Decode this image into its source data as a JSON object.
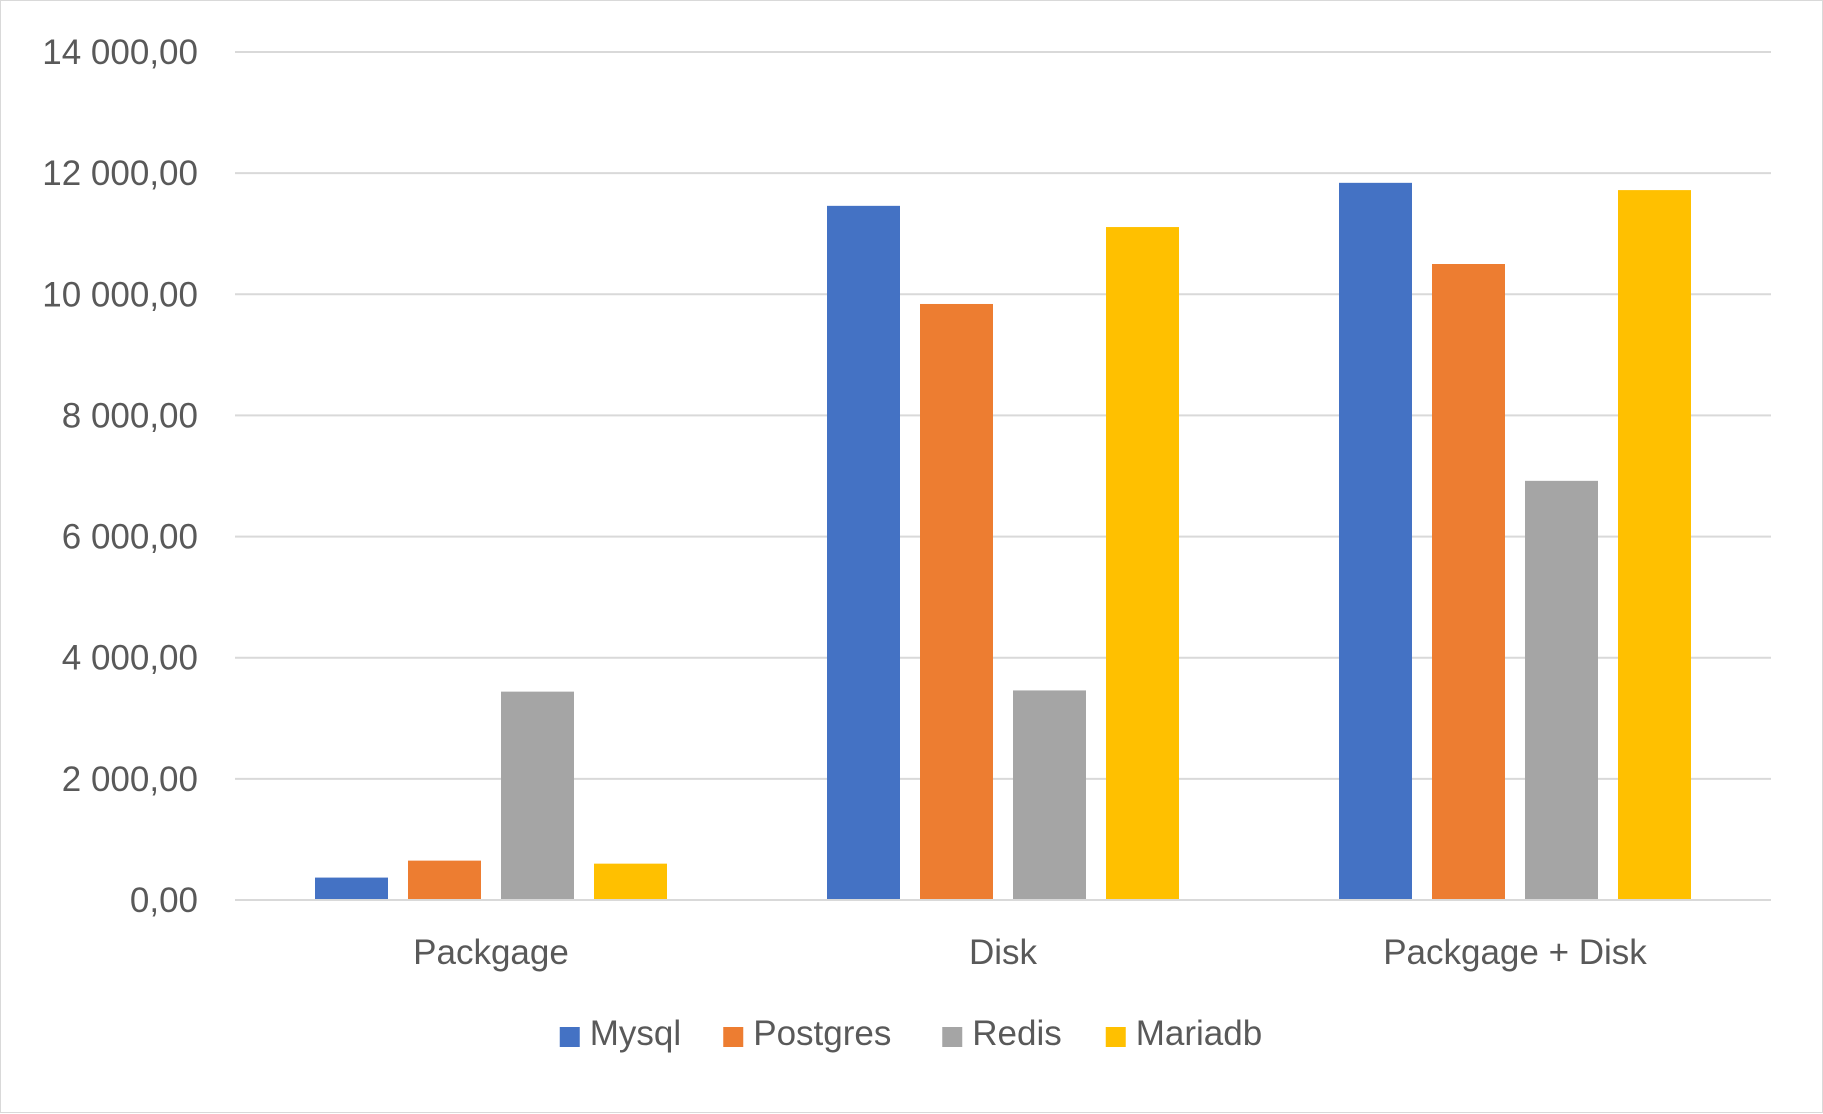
{
  "chart_data": {
    "type": "bar",
    "title": "",
    "xlabel": "",
    "ylabel": "",
    "categories": [
      "Packgage",
      "Disk",
      "Packgage + Disk"
    ],
    "series": [
      {
        "name": "Mysql",
        "color": "#4472C4",
        "values": [
          370,
          11460,
          11840
        ]
      },
      {
        "name": "Postgres",
        "color": "#ED7D31",
        "values": [
          650,
          9840,
          10500
        ]
      },
      {
        "name": "Redis",
        "color": "#A5A5A5",
        "values": [
          3440,
          3460,
          6920
        ]
      },
      {
        "name": "Mariadb",
        "color": "#FFC000",
        "values": [
          600,
          11110,
          11720
        ]
      }
    ],
    "ylim": [
      0,
      14000
    ],
    "yticks": [
      0,
      2000,
      4000,
      6000,
      8000,
      10000,
      12000,
      14000
    ],
    "ytick_labels": [
      "0,00",
      "2 000,00",
      "4 000,00",
      "6 000,00",
      "8 000,00",
      "10 000,00",
      "12 000,00",
      "14 000,00"
    ],
    "grid": true,
    "legend_position": "bottom"
  }
}
